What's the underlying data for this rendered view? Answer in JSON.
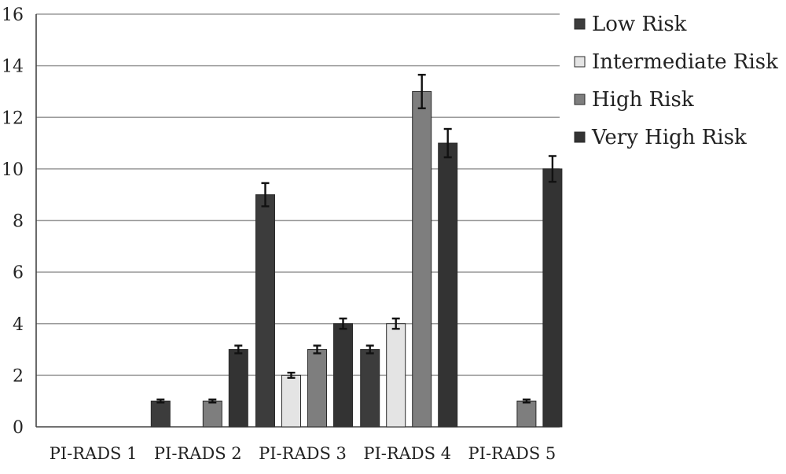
{
  "chart_data": {
    "type": "bar",
    "title": "",
    "xlabel": "",
    "ylabel": "",
    "categories": [
      "PI-RADS 1",
      "PI-RADS 2",
      "PI-RADS 3",
      "PI-RADS 4",
      "PI-RADS 5"
    ],
    "series": [
      {
        "name": "Low Risk",
        "color": "#3c3c3c",
        "values": [
          0,
          1,
          9,
          3,
          0
        ],
        "errors": [
          0,
          0.06,
          0.45,
          0.15,
          0
        ]
      },
      {
        "name": "Intermediate Risk",
        "color": "#e4e4e4",
        "values": [
          0,
          0,
          2,
          4,
          0
        ],
        "errors": [
          0,
          0,
          0.1,
          0.2,
          0
        ]
      },
      {
        "name": "High Risk",
        "color": "#7e7e7e",
        "values": [
          0,
          1,
          3,
          13,
          1
        ],
        "errors": [
          0,
          0.06,
          0.15,
          0.65,
          0.06
        ]
      },
      {
        "name": "Very High Risk",
        "color": "#333333",
        "values": [
          0,
          3,
          4,
          11,
          10
        ],
        "errors": [
          0,
          0.15,
          0.2,
          0.55,
          0.5
        ]
      }
    ],
    "ylim": [
      0,
      16
    ],
    "yticks": [
      0,
      2,
      4,
      6,
      8,
      10,
      12,
      14,
      16
    ],
    "grid": true,
    "legend_position": "right"
  }
}
